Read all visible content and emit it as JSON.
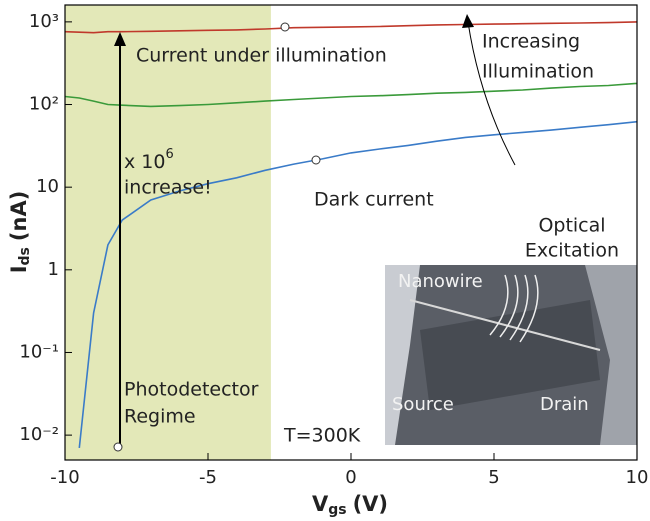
{
  "chart_data": {
    "type": "line",
    "x_label": {
      "main": "V",
      "sub": "gs",
      "unit": "(V)"
    },
    "y_label": {
      "main": "I",
      "sub": "ds",
      "unit": "(nA)"
    },
    "log_y": true,
    "highlight_xlim": [
      -10,
      -2.8
    ],
    "highlight_color": "#e3e8b8",
    "x": [
      -10,
      -9.5,
      -9,
      -8.5,
      -8,
      -7,
      -6,
      -5,
      -4,
      -3,
      -2,
      -1,
      0,
      1,
      2,
      3,
      4,
      5,
      6,
      7,
      8,
      9,
      10
    ],
    "series": [
      {
        "color": "#c0392b",
        "values": [
          760,
          750,
          740,
          760,
          760,
          770,
          780,
          790,
          800,
          820,
          850,
          860,
          870,
          880,
          900,
          920,
          930,
          940,
          950,
          960,
          970,
          980,
          1000
        ]
      },
      {
        "color": "#3a9a3a",
        "values": [
          125,
          120,
          110,
          100,
          98,
          95,
          97,
          100,
          105,
          110,
          115,
          120,
          125,
          128,
          132,
          137,
          140,
          145,
          150,
          158,
          165,
          170,
          180
        ]
      },
      {
        "color": "#3a7bc8",
        "values": [
          null,
          0.007,
          0.3,
          2,
          4,
          7,
          9,
          11,
          13,
          16,
          19,
          22,
          26,
          29,
          32,
          36,
          40,
          43,
          46,
          49,
          53,
          57,
          62
        ]
      }
    ],
    "xlim": [
      -10,
      10
    ],
    "xticks": [
      -10,
      -5,
      0,
      5,
      10
    ],
    "ylim": [
      0.005,
      1600
    ],
    "yticks": [
      {
        "value": 1000,
        "label": "10³"
      },
      {
        "value": 100,
        "label": "10²"
      },
      10,
      1,
      {
        "value": 0.1,
        "label": "10⁻¹"
      },
      {
        "value": 0.01,
        "label": "10⁻²"
      }
    ],
    "annotations": {
      "illuminated": "Current under illumination",
      "increasing": [
        "Increasing",
        "Illumination"
      ],
      "gain": {
        "main": "x 10",
        "sup": "6",
        "line2": "increase!"
      },
      "dark": "Dark current",
      "regime": [
        "Photodetector",
        "Regime"
      ],
      "temperature": "T=300K"
    },
    "inset": {
      "excitation": [
        "Optical",
        "Excitation"
      ],
      "nanowire": "Nanowire",
      "source": "Source",
      "drain": "Drain"
    }
  }
}
